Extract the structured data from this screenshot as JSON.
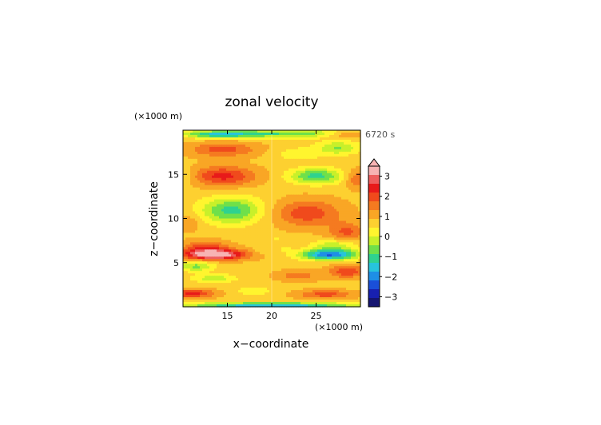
{
  "chart_data": {
    "type": "heatmap",
    "title": "zonal velocity",
    "xlabel": "x−coordinate",
    "ylabel": "z−coordinate",
    "x_unit": "(×1000 m)",
    "z_unit": "(×1000 m)",
    "time_label": "6720 s",
    "xlim": [
      10,
      30
    ],
    "ylim": [
      0,
      20
    ],
    "x_ticks": [
      15,
      20,
      25
    ],
    "x_tick_labels": [
      "15",
      "20",
      "25"
    ],
    "y_ticks": [
      5,
      10,
      15
    ],
    "y_tick_labels": [
      "5",
      "10",
      "15"
    ],
    "colorbar": {
      "labels": [
        "3",
        "2",
        "1",
        "0",
        "−1",
        "−2",
        "−3"
      ],
      "label_values": [
        3,
        2,
        1,
        0,
        -1,
        -2,
        -3
      ],
      "range": [
        -3.5,
        3.5
      ],
      "extend": "max",
      "colors_high_to_low": [
        "#f7b3b3",
        "#ee5e5e",
        "#e81a1a",
        "#f04a1c",
        "#f57a20",
        "#f9a625",
        "#fdd030",
        "#fff52e",
        "#c8f02a",
        "#6fe04a",
        "#2fd28f",
        "#27c4dc",
        "#1e8fe6",
        "#1a4fd8",
        "#1820b0",
        "#151570"
      ]
    },
    "field_description_note": ""
  },
  "features": [
    {
      "cx": 21.0,
      "cz": 19.6,
      "sx": 10.0,
      "sz": 0.45,
      "a": -1.6
    },
    {
      "cx": 14.0,
      "cz": 19.5,
      "sx": 3.5,
      "sz": 0.4,
      "a": -1.4
    },
    {
      "cx": 29.0,
      "cz": 19.5,
      "sx": 3.0,
      "sz": 0.4,
      "a": 1.4
    },
    {
      "cx": 14.5,
      "cz": 17.8,
      "sx": 3.8,
      "sz": 0.8,
      "a": 1.2
    },
    {
      "cx": 27.5,
      "cz": 18.0,
      "sx": 2.5,
      "sz": 0.8,
      "a": -1.2
    },
    {
      "cx": 23.0,
      "cz": 17.3,
      "sx": 2.5,
      "sz": 0.7,
      "a": -0.7
    },
    {
      "cx": 14.5,
      "cz": 14.8,
      "sx": 3.6,
      "sz": 1.1,
      "a": 1.6
    },
    {
      "cx": 25.0,
      "cz": 14.8,
      "sx": 3.0,
      "sz": 0.9,
      "a": -1.8
    },
    {
      "cx": 10.5,
      "cz": 14.8,
      "sx": 1.3,
      "sz": 1.0,
      "a": -0.4
    },
    {
      "cx": 29.5,
      "cz": 14.5,
      "sx": 1.2,
      "sz": 1.0,
      "a": 1.0
    },
    {
      "cx": 15.5,
      "cz": 10.9,
      "sx": 3.5,
      "sz": 1.5,
      "a": -1.8
    },
    {
      "cx": 24.0,
      "cz": 10.6,
      "sx": 3.8,
      "sz": 1.5,
      "a": 1.3
    },
    {
      "cx": 10.5,
      "cz": 9.5,
      "sx": 1.5,
      "sz": 1.0,
      "a": 0.6
    },
    {
      "cx": 28.5,
      "cz": 8.5,
      "sx": 2.0,
      "sz": 1.0,
      "a": 1.1
    },
    {
      "cx": 13.5,
      "cz": 5.9,
      "sx": 3.5,
      "sz": 0.6,
      "a": 3.0
    },
    {
      "cx": 12.5,
      "cz": 6.8,
      "sx": 2.5,
      "sz": 0.7,
      "a": 1.2
    },
    {
      "cx": 26.5,
      "cz": 5.9,
      "sx": 3.2,
      "sz": 0.6,
      "a": -3.0
    },
    {
      "cx": 27.0,
      "cz": 7.0,
      "sx": 2.5,
      "sz": 0.6,
      "a": -1.0
    },
    {
      "cx": 11.5,
      "cz": 4.6,
      "sx": 2.0,
      "sz": 0.6,
      "a": -1.3
    },
    {
      "cx": 28.5,
      "cz": 4.0,
      "sx": 2.0,
      "sz": 0.7,
      "a": 1.4
    },
    {
      "cx": 13.5,
      "cz": 3.2,
      "sx": 2.5,
      "sz": 0.5,
      "a": -1.0
    },
    {
      "cx": 23.0,
      "cz": 3.5,
      "sx": 2.5,
      "sz": 0.6,
      "a": 0.8
    },
    {
      "cx": 11.0,
      "cz": 1.5,
      "sx": 2.5,
      "sz": 0.5,
      "a": 1.6
    },
    {
      "cx": 26.0,
      "cz": 1.4,
      "sx": 3.0,
      "sz": 0.5,
      "a": 1.2
    },
    {
      "cx": 18.0,
      "cz": 1.8,
      "sx": 2.0,
      "sz": 0.5,
      "a": -0.7
    },
    {
      "cx": 20.0,
      "cz": 0.2,
      "sx": 10.0,
      "sz": 0.25,
      "a": -2.6
    },
    {
      "cx": 19.0,
      "cz": 6.3,
      "sx": 0.8,
      "sz": 0.4,
      "a": -0.4
    },
    {
      "cx": 21.5,
      "cz": 6.6,
      "sx": 0.7,
      "sz": 0.4,
      "a": -0.4
    },
    {
      "cx": 20.5,
      "cz": 7.8,
      "sx": 0.6,
      "sz": 0.4,
      "a": -0.4
    }
  ]
}
